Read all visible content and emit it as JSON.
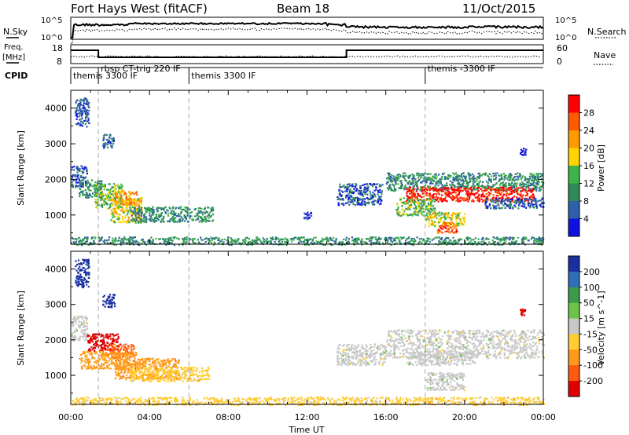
{
  "header": {
    "station": "Fort Hays West (fitACF)",
    "beam": "Beam 18",
    "date": "11/Oct/2015"
  },
  "top_panels": {
    "nsky_label": "N.Sky",
    "nsky_ticks": [
      "10^5",
      "10^0"
    ],
    "nsky_right_ticks": [
      "10^5",
      "10^0"
    ],
    "nsearch_label": "N.Search",
    "freq_label": [
      "Freq.",
      "[MHz]"
    ],
    "freq_ticks": [
      "18",
      "8"
    ],
    "nave_ticks": [
      "60",
      "0"
    ],
    "nave_label": "Nave",
    "cpid_label": "CPID",
    "cpid_segments": [
      {
        "label": "themis 3300 IF",
        "start_h": 0.0,
        "end_h": 1.4
      },
      {
        "label": "rbsp CT-trig 220 IF",
        "start_h": 1.4,
        "end_h": 6.0
      },
      {
        "label": "themis 3300 IF",
        "start_h": 6.0,
        "end_h": 18.0
      },
      {
        "label": "themis -3300 IF",
        "start_h": 18.0,
        "end_h": 24.0
      }
    ],
    "freq_steps": [
      {
        "start_h": 0.0,
        "end_h": 1.4,
        "level": "high"
      },
      {
        "start_h": 1.4,
        "end_h": 14.0,
        "level": "low"
      },
      {
        "start_h": 14.0,
        "end_h": 24.0,
        "level": "high"
      }
    ]
  },
  "chart_data": [
    {
      "type": "heatmap",
      "name": "power",
      "ylabel": "Slant Range [km]",
      "xlabel": "",
      "x_ticks": [
        "00:00",
        "04:00",
        "08:00",
        "12:00",
        "16:00",
        "20:00",
        "00:00"
      ],
      "xlim_hours": [
        0,
        24
      ],
      "y_ticks": [
        1000,
        2000,
        3000,
        4000
      ],
      "ylim_km": [
        180,
        4500
      ],
      "colorbar_label": "Power [dB]",
      "colorbar_ticks": [
        "28",
        "24",
        "20",
        "16",
        "12",
        "8",
        "4"
      ],
      "colorbar_colors": [
        "#ff0000",
        "#ff5a00",
        "#ff9a00",
        "#ffd400",
        "#3cb44b",
        "#2e8b57",
        "#2f5fa8",
        "#1010e0"
      ],
      "vlines_hours": [
        1.4,
        6.0,
        18.0
      ],
      "regions": [
        {
          "t0": 0.0,
          "t1": 0.8,
          "r0": 1800,
          "r1": 2400,
          "level": 1
        },
        {
          "t0": 0.4,
          "t1": 1.6,
          "r0": 1500,
          "r1": 2000,
          "level": 2
        },
        {
          "t0": 1.2,
          "t1": 2.6,
          "r0": 1200,
          "r1": 1900,
          "level": 3
        },
        {
          "t0": 2.0,
          "t1": 3.6,
          "r0": 800,
          "r1": 1500,
          "level": 4
        },
        {
          "t0": 3.0,
          "t1": 7.2,
          "r0": 820,
          "r1": 1250,
          "level": 2
        },
        {
          "t0": 2.2,
          "t1": 3.4,
          "r0": 1300,
          "r1": 1700,
          "level": 5
        },
        {
          "t0": 0.2,
          "t1": 0.9,
          "r0": 3500,
          "r1": 4300,
          "level": 1
        },
        {
          "t0": 1.6,
          "t1": 2.2,
          "r0": 2900,
          "r1": 3300,
          "level": 1
        },
        {
          "t0": 11.8,
          "t1": 12.2,
          "r0": 900,
          "r1": 1100,
          "level": 0
        },
        {
          "t0": 13.5,
          "t1": 15.8,
          "r0": 1300,
          "r1": 1900,
          "level": 1
        },
        {
          "t0": 16.0,
          "t1": 24.0,
          "r0": 1700,
          "r1": 2200,
          "level": 2
        },
        {
          "t0": 17.0,
          "t1": 23.5,
          "r0": 1400,
          "r1": 1800,
          "level": 7
        },
        {
          "t0": 16.5,
          "t1": 18.5,
          "r0": 1000,
          "r1": 1500,
          "level": 3
        },
        {
          "t0": 18.0,
          "t1": 20.0,
          "r0": 700,
          "r1": 1100,
          "level": 4
        },
        {
          "t0": 18.6,
          "t1": 19.6,
          "r0": 520,
          "r1": 800,
          "level": 6
        },
        {
          "t0": 21.0,
          "t1": 24.0,
          "r0": 1200,
          "r1": 1500,
          "level": 1
        },
        {
          "t0": 22.8,
          "t1": 23.1,
          "r0": 2700,
          "r1": 2900,
          "level": 0
        },
        {
          "t0": 0.0,
          "t1": 24.0,
          "r0": 180,
          "r1": 400,
          "level": 2
        }
      ]
    },
    {
      "type": "heatmap",
      "name": "velocity",
      "ylabel": "Slant Range [km]",
      "xlabel": "Time UT",
      "x_ticks": [
        "00:00",
        "04:00",
        "08:00",
        "12:00",
        "16:00",
        "20:00",
        "00:00"
      ],
      "xlim_hours": [
        0,
        24
      ],
      "y_ticks": [
        1000,
        2000,
        3000,
        4000
      ],
      "ylim_km": [
        180,
        4500
      ],
      "colorbar_label": "Velocity [m s^-1]",
      "colorbar_ticks": [
        "200",
        "100",
        "50",
        "15",
        "-15",
        "-50",
        "-100",
        "-200"
      ],
      "colorbar_colors": [
        "#1a2fa0",
        "#2e6fb8",
        "#3c9a4a",
        "#6cc24a",
        "#c8c8c8",
        "#ffcc33",
        "#ff9a1a",
        "#ff5a10",
        "#e00000"
      ],
      "vlines_hours": [
        1.4,
        6.0,
        18.0
      ],
      "regions": [
        {
          "t0": 0.0,
          "t1": 0.8,
          "r0": 2000,
          "r1": 2700,
          "level": 4
        },
        {
          "t0": 0.8,
          "t1": 2.4,
          "r0": 1700,
          "r1": 2200,
          "level": 8
        },
        {
          "t0": 1.8,
          "t1": 3.2,
          "r0": 1500,
          "r1": 1900,
          "level": 7
        },
        {
          "t0": 0.4,
          "t1": 3.4,
          "r0": 1200,
          "r1": 1700,
          "level": 6
        },
        {
          "t0": 2.2,
          "t1": 5.5,
          "r0": 900,
          "r1": 1500,
          "level": 6
        },
        {
          "t0": 3.0,
          "t1": 7.0,
          "r0": 850,
          "r1": 1250,
          "level": 5
        },
        {
          "t0": 0.2,
          "t1": 0.9,
          "r0": 3500,
          "r1": 4300,
          "level": 0
        },
        {
          "t0": 1.6,
          "t1": 2.2,
          "r0": 2900,
          "r1": 3300,
          "level": 0
        },
        {
          "t0": 13.5,
          "t1": 16.0,
          "r0": 1300,
          "r1": 1900,
          "level": 4
        },
        {
          "t0": 16.0,
          "t1": 24.0,
          "r0": 1500,
          "r1": 2300,
          "level": 4
        },
        {
          "t0": 17.0,
          "t1": 20.5,
          "r0": 1300,
          "r1": 1700,
          "level": 4
        },
        {
          "t0": 18.0,
          "t1": 20.0,
          "r0": 600,
          "r1": 1100,
          "level": 4
        },
        {
          "t0": 22.8,
          "t1": 23.1,
          "r0": 2700,
          "r1": 2900,
          "level": 8
        },
        {
          "t0": 0.0,
          "t1": 24.0,
          "r0": 180,
          "r1": 400,
          "level": 5
        }
      ]
    }
  ]
}
